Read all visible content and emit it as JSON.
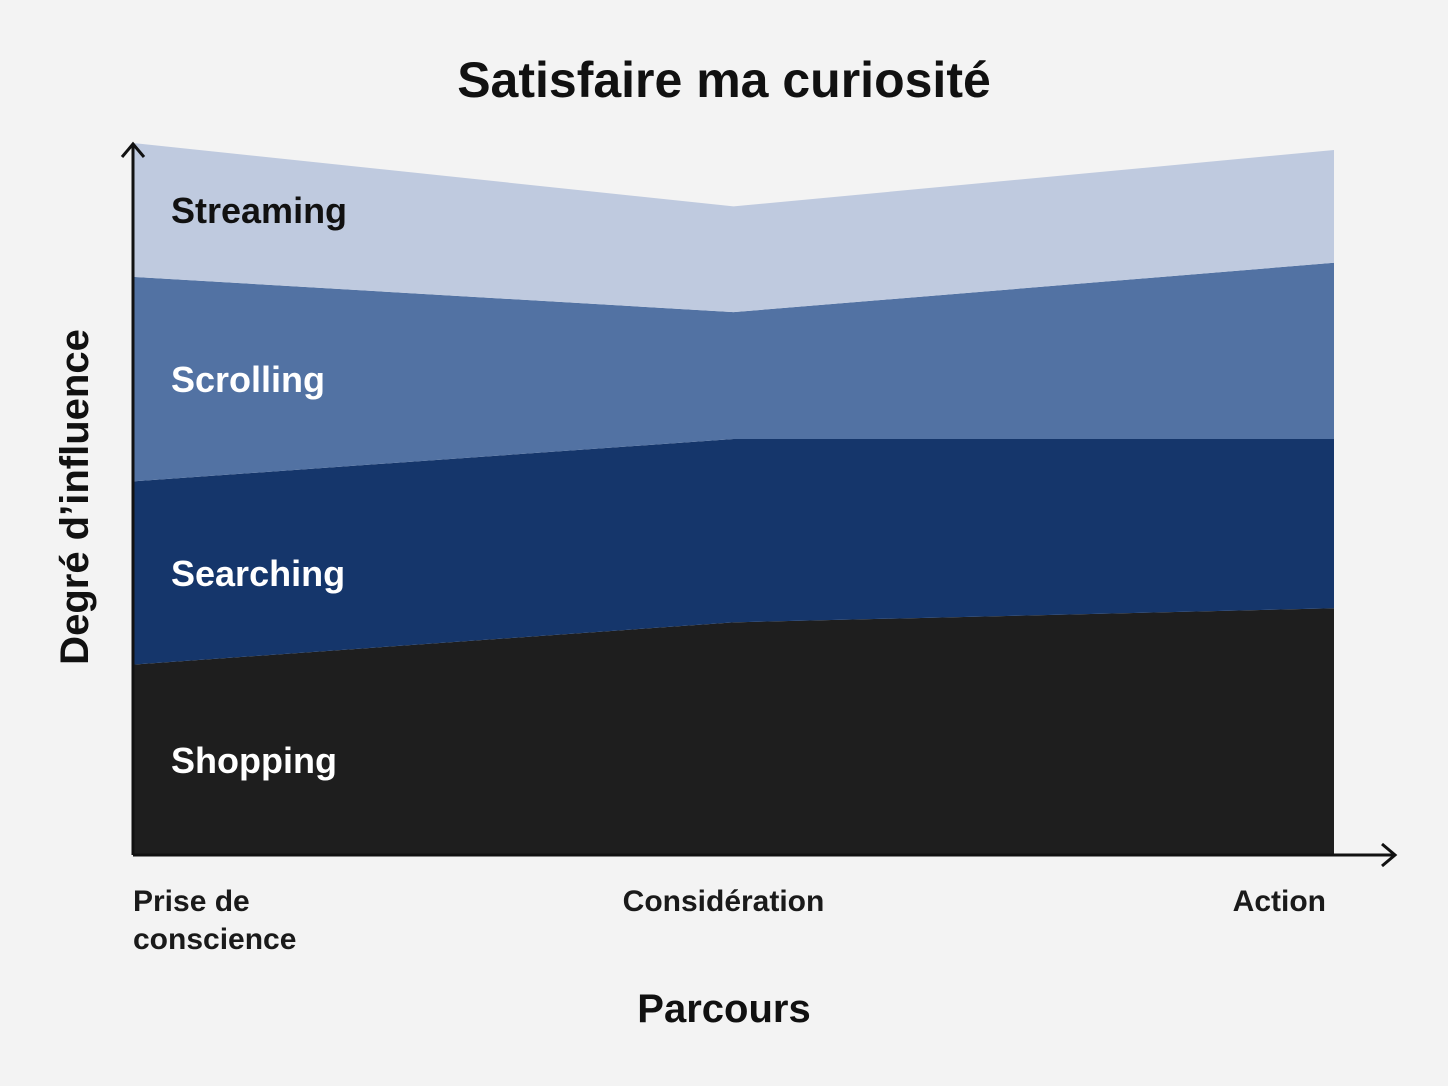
{
  "chart_data": {
    "type": "area",
    "stacked": true,
    "title": "Satisfaire ma curiosité",
    "xlabel": "Parcours",
    "ylabel": "Degré d’influence",
    "categories": [
      [
        "Prise de",
        "conscience"
      ],
      [
        "Considération"
      ],
      [
        "Action"
      ]
    ],
    "ylim": [
      0,
      100
    ],
    "grid": false,
    "legend": "inline labels on areas",
    "series": [
      {
        "name": "Shopping",
        "values": [
          27,
          33,
          35
        ],
        "color": "#1e1e1e",
        "label_color": "#ffffff"
      },
      {
        "name": "Searching",
        "values": [
          26,
          26,
          24
        ],
        "color": "#15366b",
        "label_color": "#ffffff"
      },
      {
        "name": "Scrolling",
        "values": [
          29,
          18,
          25
        ],
        "color": "#5272a3",
        "label_color": "#ffffff"
      },
      {
        "name": "Streaming",
        "values": [
          19,
          15,
          16
        ],
        "color": "#bfcadf",
        "label_color": "#111111"
      }
    ]
  }
}
